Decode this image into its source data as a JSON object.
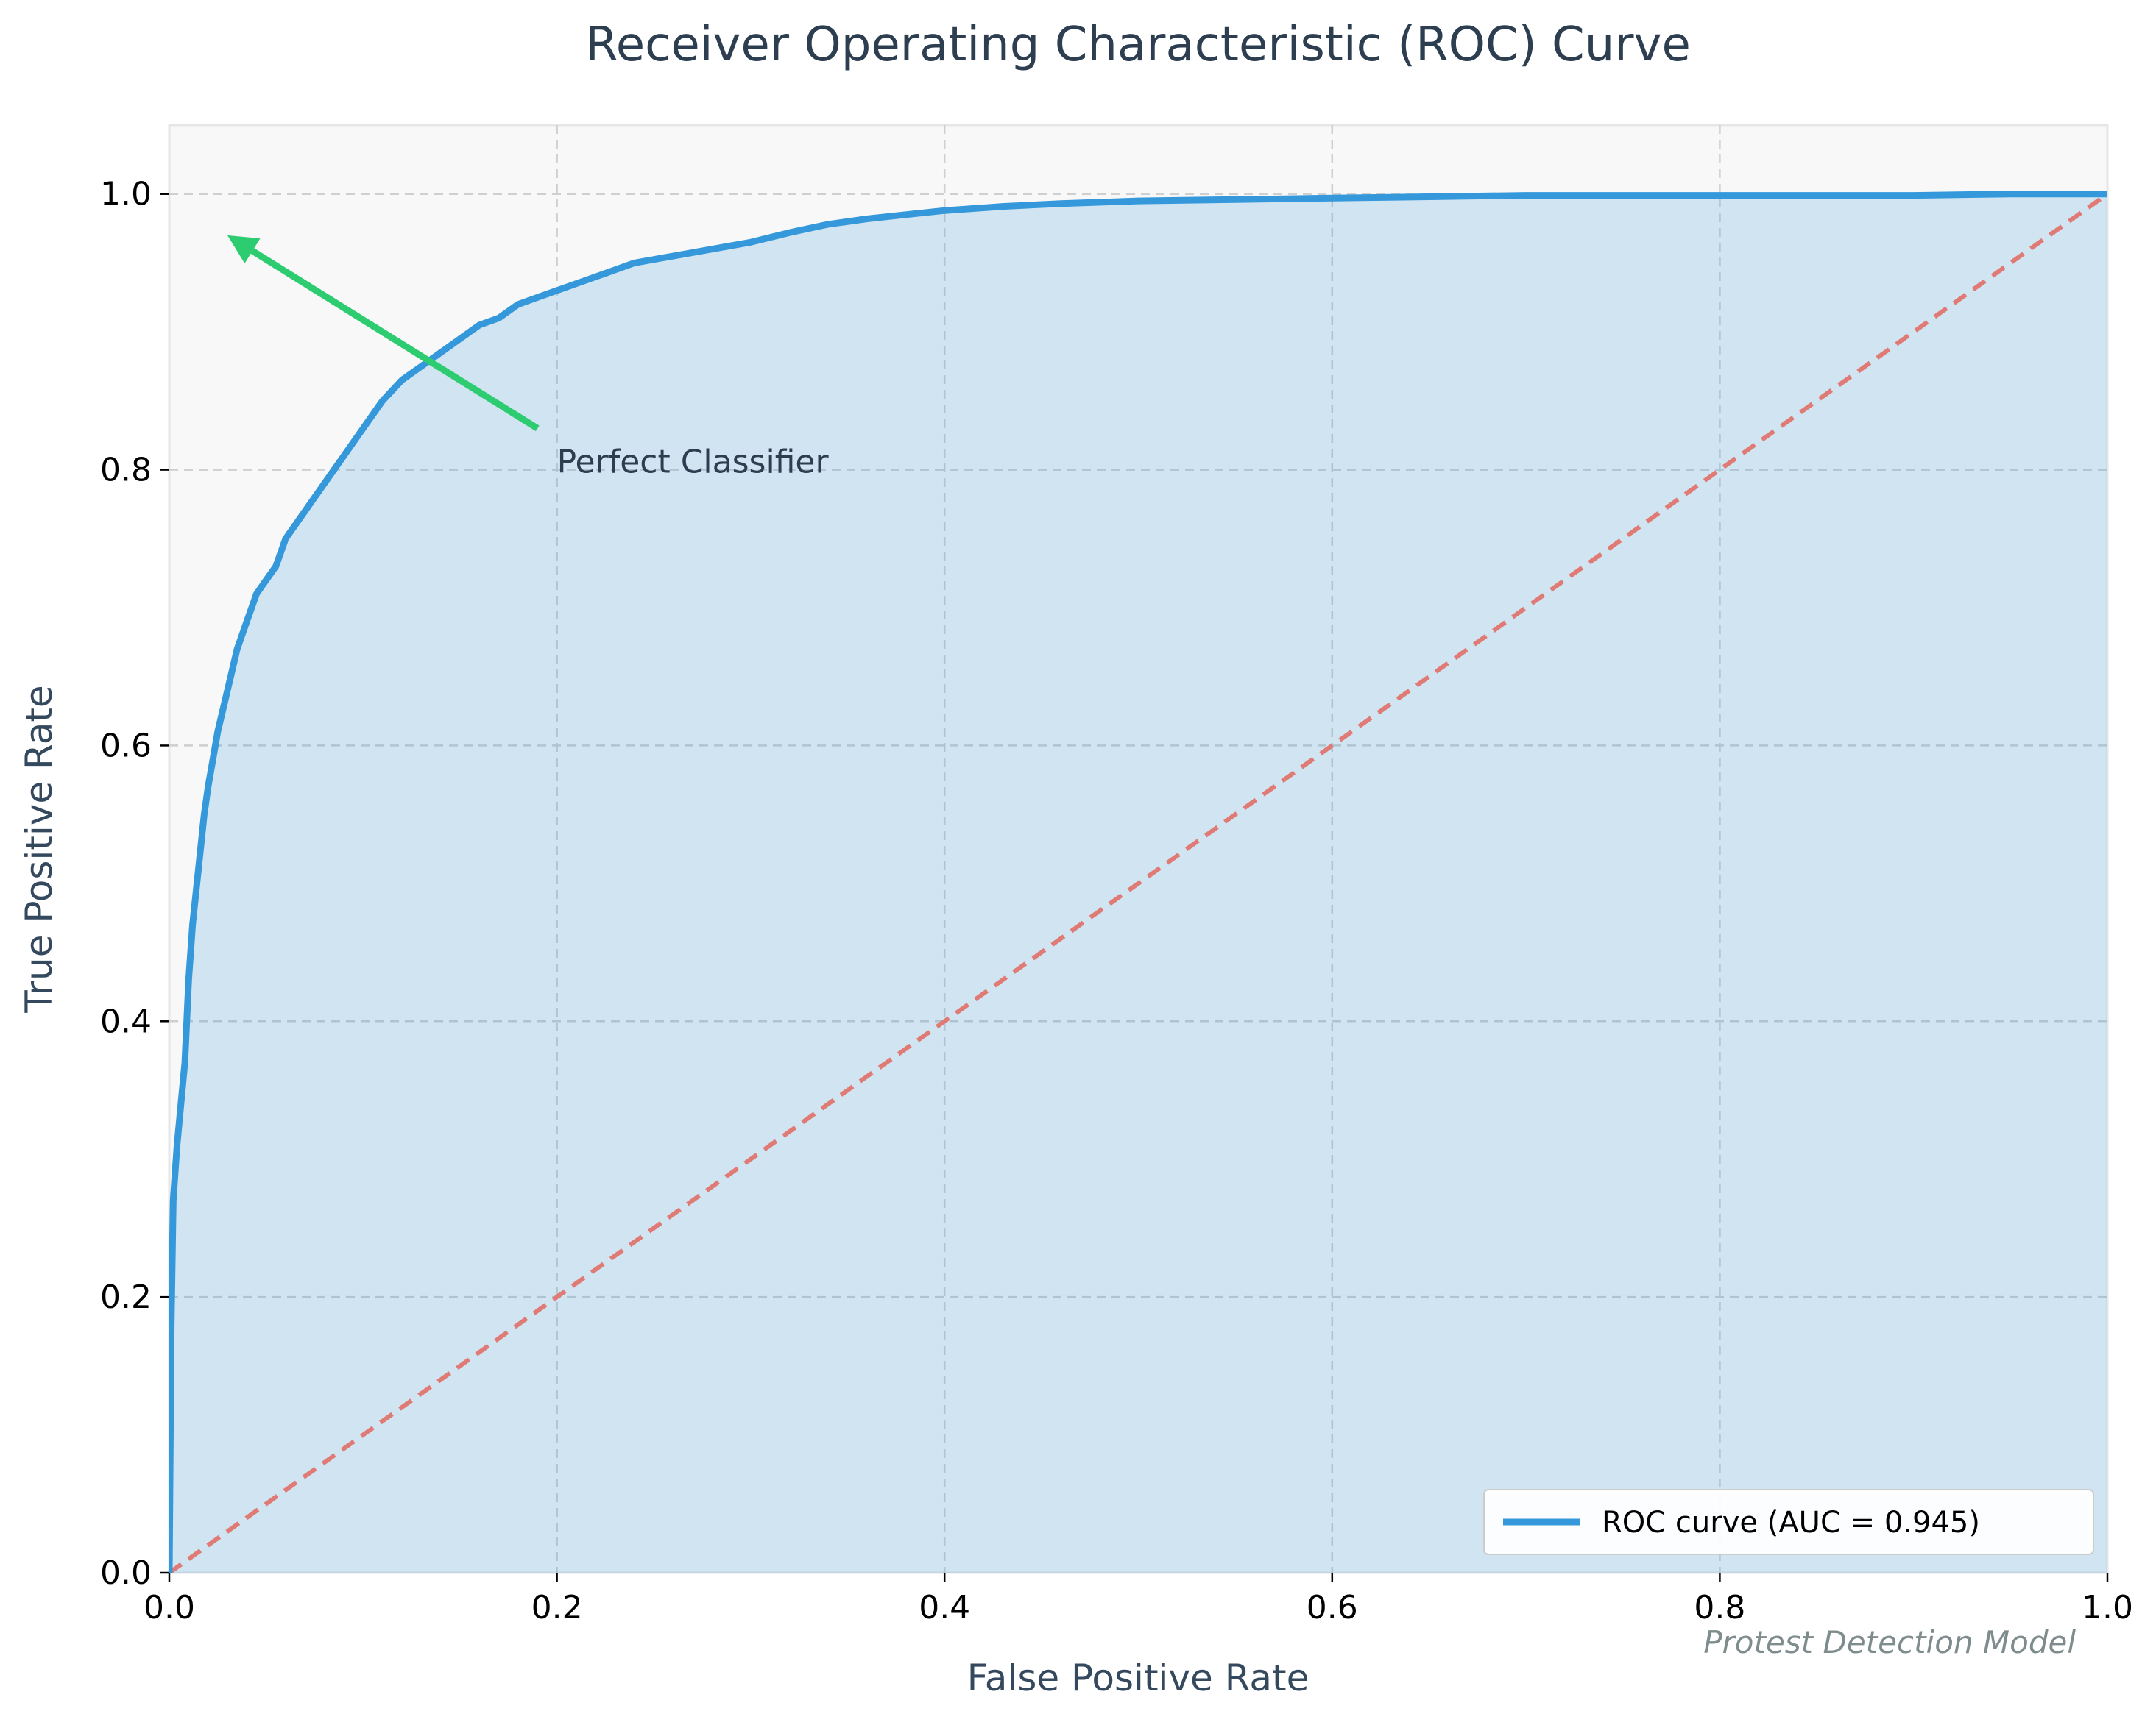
{
  "chart_data": {
    "type": "line",
    "title": "Receiver Operating Characteristic (ROC) Curve",
    "xlabel": "False Positive Rate",
    "ylabel": "True Positive Rate",
    "xlim": [
      0.0,
      1.0
    ],
    "ylim": [
      0.0,
      1.05
    ],
    "x_ticks": [
      "0.0",
      "0.2",
      "0.4",
      "0.6",
      "0.8",
      "1.0"
    ],
    "y_ticks": [
      "0.0",
      "0.2",
      "0.4",
      "0.6",
      "0.8",
      "1.0"
    ],
    "grid": true,
    "legend_position": "bottom-right",
    "series": [
      {
        "name": "ROC curve (AUC = 0.945)",
        "color": "#3498db",
        "fill": true,
        "x": [
          0.0,
          0.001,
          0.002,
          0.004,
          0.006,
          0.008,
          0.01,
          0.012,
          0.015,
          0.018,
          0.02,
          0.025,
          0.03,
          0.035,
          0.04,
          0.045,
          0.05,
          0.055,
          0.06,
          0.07,
          0.08,
          0.09,
          0.1,
          0.11,
          0.12,
          0.13,
          0.14,
          0.15,
          0.16,
          0.17,
          0.18,
          0.19,
          0.2,
          0.22,
          0.24,
          0.26,
          0.28,
          0.3,
          0.32,
          0.34,
          0.36,
          0.38,
          0.4,
          0.43,
          0.46,
          0.5,
          0.55,
          0.6,
          0.65,
          0.7,
          0.8,
          0.9,
          0.95,
          1.0
        ],
        "y": [
          0.0,
          0.18,
          0.27,
          0.31,
          0.34,
          0.37,
          0.43,
          0.47,
          0.51,
          0.55,
          0.57,
          0.61,
          0.64,
          0.67,
          0.69,
          0.71,
          0.72,
          0.73,
          0.75,
          0.77,
          0.79,
          0.81,
          0.83,
          0.85,
          0.865,
          0.875,
          0.885,
          0.895,
          0.905,
          0.91,
          0.92,
          0.925,
          0.93,
          0.94,
          0.95,
          0.955,
          0.96,
          0.965,
          0.972,
          0.978,
          0.982,
          0.985,
          0.988,
          0.991,
          0.993,
          0.995,
          0.996,
          0.997,
          0.998,
          0.999,
          0.999,
          0.999,
          1.0,
          1.0
        ]
      },
      {
        "name": "",
        "color": "#e07a74",
        "dashed": true,
        "x": [
          0.0,
          1.0
        ],
        "y": [
          0.0,
          1.0
        ]
      }
    ],
    "annotations": [
      {
        "text": "Perfect Classifier",
        "text_at": [
          0.2,
          0.8
        ],
        "arrow_from": [
          0.19,
          0.83
        ],
        "arrow_to": [
          0.03,
          0.97
        ],
        "color": "#2ecc71"
      }
    ],
    "watermark": "Protest Detection Model"
  }
}
